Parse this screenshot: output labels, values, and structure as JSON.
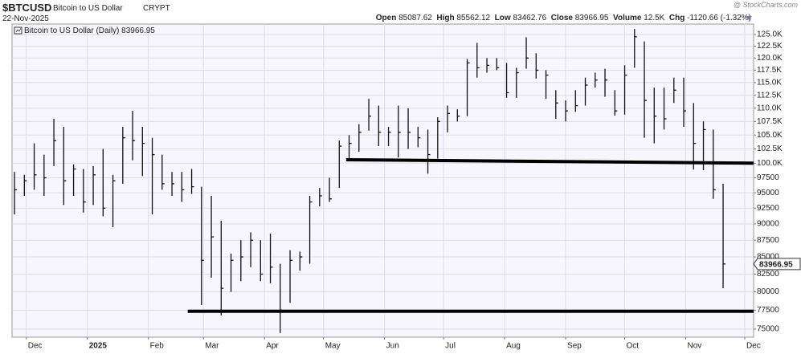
{
  "header": {
    "symbol": "$BTCUSD",
    "name": "Bitcoin to US Dollar",
    "exchange": "CRYPT",
    "date": "22-Nov-2025",
    "source": "@ StockCharts.com",
    "open_label": "Open",
    "open": "85087.62",
    "high_label": "High",
    "high": "85562.12",
    "low_label": "Low",
    "low": "83462.76",
    "close_label": "Close",
    "close": "83966.95",
    "volume_label": "Volume",
    "volume": "12.5K",
    "chg_label": "Chg",
    "chg": "-1120.66 (-1.32%)"
  },
  "chart_data": {
    "type": "hlc",
    "series_name": "Bitcoin to US Dollar (Daily)",
    "color": "#111111",
    "log_scale": true,
    "grid": true,
    "xlim": [
      -0.25,
      75.1
    ],
    "xticks": [
      {
        "value": 1.2,
        "label": "Dec"
      },
      {
        "value": 7.4,
        "label": "2025"
      },
      {
        "value": 13.6,
        "label": "Feb"
      },
      {
        "value": 19.2,
        "label": "Mar"
      },
      {
        "value": 25.4,
        "label": "Apr"
      },
      {
        "value": 31.4,
        "label": "May"
      },
      {
        "value": 37.6,
        "label": "Jun"
      },
      {
        "value": 43.6,
        "label": "Jul"
      },
      {
        "value": 49.8,
        "label": "Aug"
      },
      {
        "value": 56,
        "label": "Sep"
      },
      {
        "value": 62,
        "label": "Oct"
      },
      {
        "value": 68.2,
        "label": "Nov"
      },
      {
        "value": 74.2,
        "label": "Dec"
      }
    ],
    "ylim": [
      73960,
      127280
    ],
    "yticks": [
      75000,
      77500,
      80000,
      82500,
      85000,
      87500,
      90000,
      92500,
      95000,
      97500,
      {
        "value": 100000,
        "label": "100.0K"
      },
      {
        "value": 102500,
        "label": "102.5K"
      },
      {
        "value": 105000,
        "label": "105.0K"
      },
      {
        "value": 107500,
        "label": "107.5K"
      },
      {
        "value": 110000,
        "label": "110.0K"
      },
      {
        "value": 112500,
        "label": "112.5K"
      },
      {
        "value": 115000,
        "label": "115.0K"
      },
      {
        "value": 117500,
        "label": "117.5K"
      },
      {
        "value": 120000,
        "label": "120.0K"
      },
      {
        "value": 122500,
        "label": "122.5K"
      },
      {
        "value": 125000,
        "label": "125.0K"
      }
    ],
    "close": [
      95500,
      97000,
      98000,
      97500,
      104000,
      97000,
      99000,
      93500,
      98000,
      92500,
      97000,
      104500,
      104000,
      103500,
      101500,
      96500,
      96500,
      95500,
      96000,
      84500,
      88000,
      80500,
      84500,
      85000,
      87500,
      82500,
      83500,
      77500,
      84500,
      85000,
      93500,
      94500,
      94000,
      103000,
      103500,
      105500,
      108500,
      105500,
      105500,
      105500,
      105500,
      104500,
      101500,
      107500,
      109000,
      108500,
      119000,
      118000,
      118500,
      118000,
      113000,
      117000,
      120000,
      117500,
      116500,
      111000,
      109500,
      110500,
      114500,
      115500,
      115500,
      109500,
      116500,
      124500,
      111500,
      108500,
      108000,
      113500,
      109500,
      103500,
      106000,
      95500,
      83966.95
    ],
    "high": [
      98500,
      98000,
      103500,
      101500,
      108000,
      106500,
      99800,
      99000,
      99500,
      102500,
      98000,
      106500,
      109500,
      106500,
      104500,
      101500,
      98500,
      98500,
      99000,
      96000,
      94500,
      90500,
      85500,
      87500,
      88700,
      87500,
      88500,
      84000,
      86000,
      85800,
      94500,
      95800,
      97500,
      104000,
      105000,
      107000,
      111800,
      110500,
      106500,
      110500,
      110000,
      106500,
      106000,
      108300,
      110500,
      109800,
      119800,
      123200,
      120000,
      120000,
      119000,
      118000,
      124400,
      121000,
      117500,
      113500,
      111500,
      113500,
      116000,
      117000,
      117800,
      113500,
      118500,
      126200,
      123500,
      114000,
      114000,
      116000,
      116000,
      111000,
      107500,
      106000,
      96500
    ],
    "low": [
      91500,
      94500,
      95500,
      94500,
      99500,
      93000,
      94500,
      91800,
      93000,
      91200,
      89500,
      96500,
      100500,
      97800,
      91500,
      95500,
      94500,
      93500,
      94800,
      78200,
      82000,
      76800,
      80000,
      81500,
      83500,
      81500,
      81200,
      74500,
      78500,
      83000,
      84000,
      92800,
      93500,
      95800,
      100800,
      102000,
      105800,
      103000,
      103000,
      101000,
      102500,
      102800,
      98200,
      100800,
      105500,
      107500,
      108500,
      116000,
      117000,
      117500,
      112000,
      112000,
      117800,
      115800,
      111800,
      108000,
      107500,
      109300,
      110500,
      114000,
      112200,
      108600,
      108800,
      118000,
      104500,
      103500,
      106000,
      111000,
      106500,
      98900,
      98800,
      94000,
      80500
    ],
    "levels": [
      {
        "x": [
          33.7,
          75.1
        ],
        "y": [
          100600,
          100000
        ]
      },
      {
        "x": [
          17.6,
          75.1
        ],
        "y": [
          77350,
          77350
        ]
      }
    ]
  }
}
